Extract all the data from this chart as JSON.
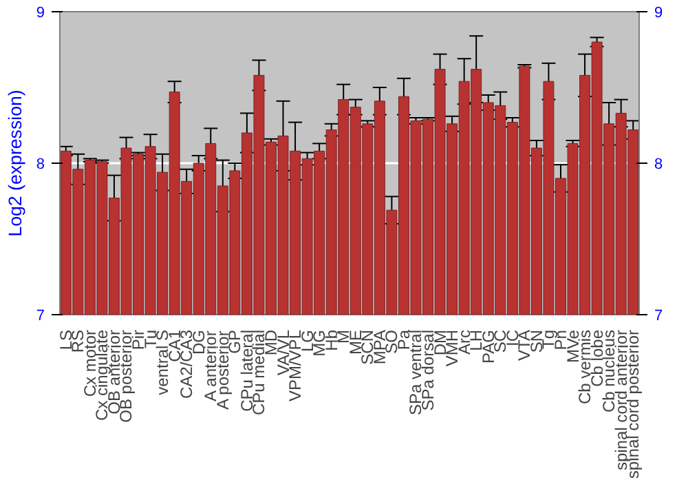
{
  "chart_data": {
    "type": "bar",
    "ylabel": "Log2 (expression)",
    "categories": [
      "LS",
      "RS",
      "Cx motor",
      "Cx cingulate",
      "OB anterior",
      "OB posterior",
      "Pir",
      "Tu",
      "ventral S",
      "CA1",
      "CA2/CA3",
      "DG",
      "A anterior",
      "A posterior",
      "GP",
      "CPu lateral",
      "CPu medial",
      "MD",
      "VA/VL",
      "VPM/VPL",
      "LG",
      "MG",
      "Hb",
      "M",
      "ME",
      "SCN",
      "MPA",
      "SO",
      "Pa",
      "SPa ventral",
      "SPa dorsal",
      "DM",
      "VMH",
      "Arc",
      "LH",
      "PAG",
      "SC",
      "IC",
      "VTA",
      "SN",
      "Tg",
      "Pn",
      "MVe",
      "Cb vermis",
      "Cb lobe",
      "Cb nucleus",
      "spinal cord anterior",
      "spinal cord posterior"
    ],
    "values": [
      8.08,
      7.96,
      8.02,
      8.01,
      7.77,
      8.1,
      8.06,
      8.11,
      7.94,
      8.47,
      7.88,
      8.0,
      8.13,
      7.85,
      7.95,
      8.2,
      8.58,
      8.14,
      8.18,
      8.08,
      8.03,
      8.08,
      8.22,
      8.42,
      8.37,
      8.26,
      8.41,
      7.69,
      8.44,
      8.28,
      8.29,
      8.62,
      8.26,
      8.54,
      8.62,
      8.4,
      8.38,
      8.27,
      8.64,
      8.1,
      8.54,
      7.9,
      8.13,
      8.58,
      8.8,
      8.26,
      8.33,
      8.22
    ],
    "errors": [
      0.03,
      0.1,
      0.01,
      0.01,
      0.15,
      0.07,
      0.01,
      0.08,
      0.12,
      0.07,
      0.08,
      0.05,
      0.1,
      0.17,
      0.05,
      0.13,
      0.1,
      0.02,
      0.23,
      0.19,
      0.04,
      0.05,
      0.04,
      0.1,
      0.05,
      0.02,
      0.09,
      0.09,
      0.12,
      0.02,
      0.01,
      0.1,
      0.05,
      0.15,
      0.22,
      0.05,
      0.09,
      0.03,
      0.01,
      0.05,
      0.12,
      0.09,
      0.02,
      0.14,
      0.03,
      0.14,
      0.09,
      0.06
    ],
    "color": "#b83232",
    "ylim": [
      7,
      9
    ],
    "yticks": [
      7,
      8,
      9
    ],
    "y2lim": [
      7,
      9
    ],
    "y2ticks": [
      7,
      8,
      9
    ],
    "grid": "y"
  }
}
